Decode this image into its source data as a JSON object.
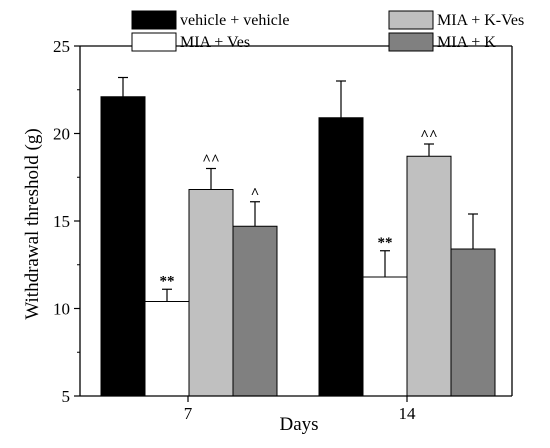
{
  "chart_data": {
    "type": "bar",
    "xlabel": "Days",
    "ylabel": "Withdrawal threshold (g)",
    "ylim": [
      5,
      25
    ],
    "y_ticks": [
      5,
      10,
      15,
      20,
      25
    ],
    "categories": [
      "7",
      "14"
    ],
    "grid": false,
    "legend_position": "top",
    "series": [
      {
        "name": "vehicle + vehicle",
        "color": "#000000",
        "values": [
          22.1,
          20.9
        ],
        "errors": [
          1.1,
          2.1
        ],
        "annotations": [
          "",
          ""
        ]
      },
      {
        "name": "MIA + Ves",
        "color": "#ffffff",
        "values": [
          10.4,
          11.8
        ],
        "errors": [
          0.7,
          1.5
        ],
        "annotations": [
          "**",
          "**"
        ]
      },
      {
        "name": "MIA + K-Ves",
        "color": "#c0c0c0",
        "values": [
          16.8,
          18.7
        ],
        "errors": [
          1.2,
          0.7
        ],
        "annotations": [
          "^^",
          "^^"
        ]
      },
      {
        "name": "MIA + K",
        "color": "#808080",
        "values": [
          14.7,
          13.4
        ],
        "errors": [
          1.4,
          2.0
        ],
        "annotations": [
          "^",
          ""
        ]
      }
    ]
  }
}
